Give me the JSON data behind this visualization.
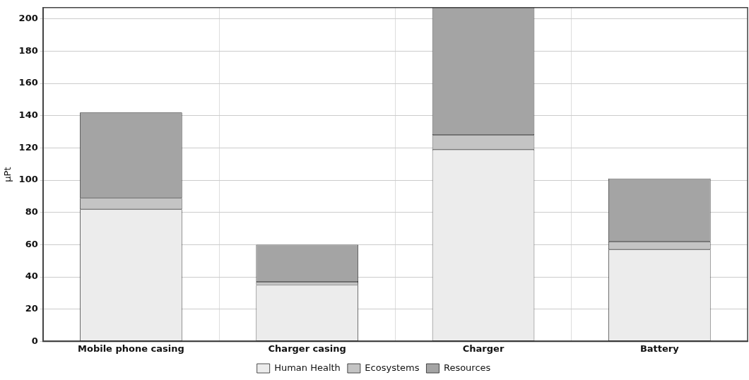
{
  "chart_data": {
    "type": "bar",
    "stacked": true,
    "ylabel": "µPt",
    "categories": [
      "Mobile phone casing",
      "Charger casing",
      "Charger",
      "Battery"
    ],
    "series": [
      {
        "name": "Human Health",
        "color": "#ececec",
        "values": [
          82,
          35,
          119,
          57
        ]
      },
      {
        "name": "Ecosystems",
        "color": "#c4c4c4",
        "values": [
          7,
          2,
          9,
          5
        ]
      },
      {
        "name": "Resources",
        "color": "#a4a4a4",
        "values": [
          53,
          23,
          79,
          39
        ]
      }
    ],
    "ylim": [
      0,
      207
    ],
    "yticks": [
      0,
      20,
      40,
      60,
      80,
      100,
      120,
      140,
      160,
      180,
      200
    ],
    "grid": true,
    "legend": "bottom"
  }
}
